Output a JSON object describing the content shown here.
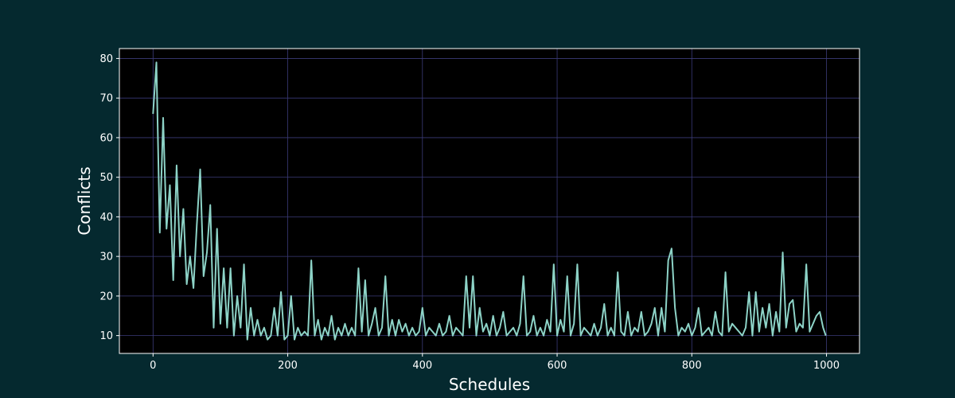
{
  "chart_data": {
    "type": "line",
    "xlabel": "Schedules",
    "ylabel": "Conflicts",
    "color": "#8dd3c7",
    "grid": true,
    "xlim": [
      -50,
      1049
    ],
    "ylim": [
      5.5,
      82.5
    ],
    "xticks": [
      0,
      200,
      400,
      600,
      800,
      1000
    ],
    "yticks": [
      10,
      20,
      30,
      40,
      50,
      60,
      70,
      80
    ],
    "x": [
      0,
      5,
      10,
      15,
      20,
      25,
      30,
      35,
      40,
      45,
      50,
      55,
      60,
      65,
      70,
      75,
      80,
      85,
      90,
      95,
      100,
      105,
      110,
      115,
      120,
      125,
      130,
      135,
      140,
      145,
      150,
      155,
      160,
      165,
      170,
      175,
      180,
      185,
      190,
      195,
      200,
      205,
      210,
      215,
      220,
      225,
      230,
      235,
      240,
      245,
      250,
      255,
      260,
      265,
      270,
      275,
      280,
      285,
      290,
      295,
      300,
      305,
      310,
      315,
      320,
      325,
      330,
      335,
      340,
      345,
      350,
      355,
      360,
      365,
      370,
      375,
      380,
      385,
      390,
      395,
      400,
      405,
      410,
      415,
      420,
      425,
      430,
      435,
      440,
      445,
      450,
      455,
      460,
      465,
      470,
      475,
      480,
      485,
      490,
      495,
      500,
      505,
      510,
      515,
      520,
      525,
      530,
      535,
      540,
      545,
      550,
      555,
      560,
      565,
      570,
      575,
      580,
      585,
      590,
      595,
      600,
      605,
      610,
      615,
      620,
      625,
      630,
      635,
      640,
      645,
      650,
      655,
      660,
      665,
      670,
      675,
      680,
      685,
      690,
      695,
      700,
      705,
      710,
      715,
      720,
      725,
      730,
      735,
      740,
      745,
      750,
      755,
      760,
      765,
      770,
      775,
      780,
      785,
      790,
      795,
      800,
      805,
      810,
      815,
      820,
      825,
      830,
      835,
      840,
      845,
      850,
      855,
      860,
      865,
      870,
      875,
      880,
      885,
      890,
      895,
      900,
      905,
      910,
      915,
      920,
      925,
      930,
      935,
      940,
      945,
      950,
      955,
      960,
      965,
      970,
      975,
      980,
      985,
      990,
      995,
      999
    ],
    "values": [
      66,
      79,
      36,
      65,
      37,
      48,
      24,
      53,
      30,
      42,
      23,
      30,
      22,
      38,
      52,
      25,
      31,
      43,
      12,
      37,
      13,
      27,
      12,
      27,
      10,
      20,
      12,
      28,
      9,
      17,
      10,
      14,
      10,
      12,
      9,
      10,
      17,
      10,
      21,
      9,
      10,
      20,
      9,
      12,
      10,
      11,
      10,
      29,
      10,
      14,
      9,
      12,
      10,
      15,
      9,
      12,
      10,
      13,
      10,
      12,
      10,
      27,
      11,
      24,
      10,
      13,
      17,
      10,
      12,
      25,
      10,
      14,
      10,
      14,
      11,
      13,
      10,
      12,
      10,
      11,
      17,
      10,
      12,
      11,
      10,
      13,
      10,
      11,
      15,
      10,
      12,
      11,
      10,
      25,
      12,
      25,
      10,
      17,
      11,
      13,
      10,
      15,
      10,
      12,
      16,
      10,
      11,
      12,
      10,
      13,
      25,
      10,
      11,
      15,
      10,
      12,
      10,
      14,
      11,
      28,
      10,
      14,
      11,
      25,
      10,
      13,
      28,
      10,
      12,
      11,
      10,
      13,
      10,
      12,
      18,
      10,
      12,
      10,
      26,
      11,
      10,
      16,
      10,
      12,
      11,
      16,
      10,
      11,
      13,
      17,
      10,
      17,
      11,
      29,
      32,
      17,
      10,
      12,
      11,
      13,
      10,
      12,
      17,
      10,
      11,
      12,
      10,
      16,
      11,
      10,
      26,
      11,
      13,
      12,
      11,
      10,
      12,
      21,
      10,
      21,
      11,
      17,
      12,
      18,
      10,
      16,
      11,
      31,
      12,
      18,
      19,
      11,
      13,
      12,
      28,
      11,
      13,
      15,
      16,
      12,
      10
    ]
  }
}
